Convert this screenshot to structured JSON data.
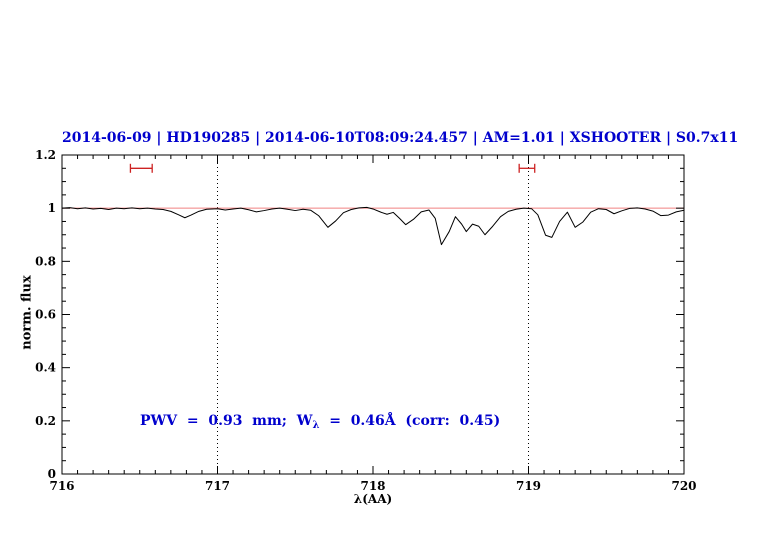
{
  "annotation": {
    "pre": "PWV  =  0.93  mm;  W",
    "sub": "λ",
    "post": "  =  0.46Å  (corr:  0.45)"
  },
  "colors": {
    "title": "#0000cd",
    "annotation": "#0000cd",
    "continuum": "#f08080",
    "marker": "#cd2222",
    "spectrum": "#000000",
    "axis": "#000000"
  },
  "chart_data": {
    "type": "line",
    "title": "2014-06-09 | HD190285 | 2014-06-10T08:09:24.457 | AM=1.01 | XSHOOTER | S0.7x11",
    "xlabel": "λ(AA)",
    "ylabel": "norm. flux",
    "xlim": [
      716,
      720
    ],
    "ylim": [
      0,
      1.2
    ],
    "grid": false,
    "legend": "none",
    "xticks": {
      "values": [
        716,
        717,
        718,
        719,
        720
      ],
      "labels": [
        "716",
        "717",
        "718",
        "719",
        "720"
      ],
      "minor_step": 0.1
    },
    "yticks": {
      "values": [
        0,
        0.2,
        0.4,
        0.6,
        0.8,
        1,
        1.2
      ],
      "labels": [
        "0",
        "0.2",
        "0.4",
        "0.6",
        "0.8",
        "1",
        "1.2"
      ],
      "minor_step": 0.05
    },
    "vlines": [
      717,
      719
    ],
    "continuum_y": 1.0,
    "range_markers": [
      {
        "x1": 716.44,
        "x2": 716.58,
        "y": 1.15
      },
      {
        "x1": 718.94,
        "x2": 719.04,
        "y": 1.15
      }
    ],
    "series": [
      {
        "name": "spectrum",
        "points": [
          [
            716.0,
            1.0
          ],
          [
            716.05,
            1.002
          ],
          [
            716.1,
            0.998
          ],
          [
            716.15,
            1.001
          ],
          [
            716.2,
            0.997
          ],
          [
            716.25,
            0.999
          ],
          [
            716.3,
            0.995
          ],
          [
            716.35,
            1.0
          ],
          [
            716.4,
            0.998
          ],
          [
            716.45,
            1.001
          ],
          [
            716.5,
            0.998
          ],
          [
            716.55,
            1.0
          ],
          [
            716.6,
            0.997
          ],
          [
            716.65,
            0.995
          ],
          [
            716.7,
            0.988
          ],
          [
            716.75,
            0.975
          ],
          [
            716.79,
            0.964
          ],
          [
            716.83,
            0.974
          ],
          [
            716.88,
            0.988
          ],
          [
            716.93,
            0.996
          ],
          [
            717.0,
            0.998
          ],
          [
            717.05,
            0.993
          ],
          [
            717.1,
            0.997
          ],
          [
            717.15,
            1.0
          ],
          [
            717.2,
            0.994
          ],
          [
            717.25,
            0.986
          ],
          [
            717.3,
            0.991
          ],
          [
            717.35,
            0.997
          ],
          [
            717.4,
            1.0
          ],
          [
            717.45,
            0.996
          ],
          [
            717.5,
            0.991
          ],
          [
            717.55,
            0.996
          ],
          [
            717.6,
            0.992
          ],
          [
            717.65,
            0.972
          ],
          [
            717.71,
            0.928
          ],
          [
            717.76,
            0.952
          ],
          [
            717.81,
            0.983
          ],
          [
            717.86,
            0.995
          ],
          [
            717.91,
            1.001
          ],
          [
            717.96,
            1.003
          ],
          [
            718.0,
            0.997
          ],
          [
            718.05,
            0.985
          ],
          [
            718.09,
            0.977
          ],
          [
            718.13,
            0.984
          ],
          [
            718.17,
            0.962
          ],
          [
            718.21,
            0.938
          ],
          [
            718.26,
            0.958
          ],
          [
            718.31,
            0.986
          ],
          [
            718.36,
            0.993
          ],
          [
            718.4,
            0.962
          ],
          [
            718.44,
            0.863
          ],
          [
            718.49,
            0.912
          ],
          [
            718.53,
            0.968
          ],
          [
            718.57,
            0.94
          ],
          [
            718.6,
            0.912
          ],
          [
            718.64,
            0.94
          ],
          [
            718.68,
            0.932
          ],
          [
            718.72,
            0.9
          ],
          [
            718.77,
            0.932
          ],
          [
            718.82,
            0.968
          ],
          [
            718.87,
            0.988
          ],
          [
            718.92,
            0.996
          ],
          [
            718.97,
            1.0
          ],
          [
            719.02,
            0.998
          ],
          [
            719.06,
            0.975
          ],
          [
            719.11,
            0.898
          ],
          [
            719.15,
            0.89
          ],
          [
            719.2,
            0.95
          ],
          [
            719.25,
            0.985
          ],
          [
            719.3,
            0.928
          ],
          [
            719.35,
            0.948
          ],
          [
            719.4,
            0.985
          ],
          [
            719.45,
            0.998
          ],
          [
            719.5,
            0.995
          ],
          [
            719.55,
            0.979
          ],
          [
            719.6,
            0.99
          ],
          [
            719.65,
            0.999
          ],
          [
            719.7,
            1.001
          ],
          [
            719.75,
            0.997
          ],
          [
            719.8,
            0.989
          ],
          [
            719.85,
            0.972
          ],
          [
            719.9,
            0.974
          ],
          [
            719.95,
            0.986
          ],
          [
            720.0,
            0.992
          ]
        ]
      }
    ]
  }
}
